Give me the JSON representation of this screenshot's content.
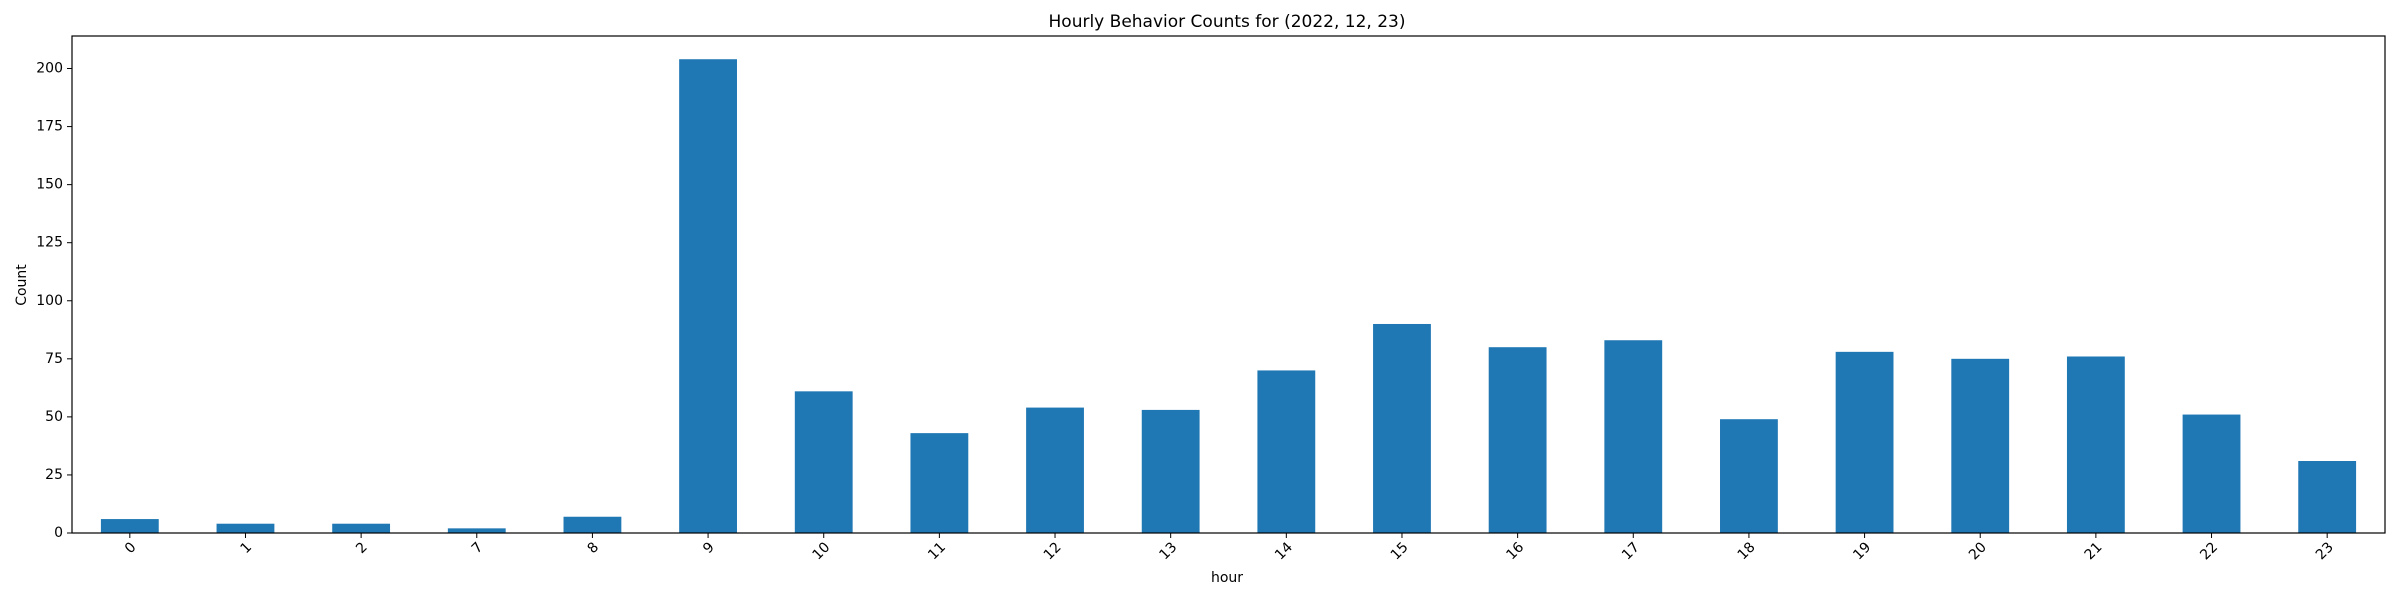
{
  "chart_data": {
    "type": "bar",
    "title": "Hourly Behavior Counts for (2022, 12, 23)",
    "xlabel": "hour",
    "ylabel": "Count",
    "categories": [
      "0",
      "1",
      "2",
      "7",
      "8",
      "9",
      "10",
      "11",
      "12",
      "13",
      "14",
      "15",
      "16",
      "17",
      "18",
      "19",
      "20",
      "21",
      "22",
      "23"
    ],
    "values": [
      6,
      4,
      4,
      2,
      7,
      204,
      61,
      43,
      54,
      53,
      70,
      90,
      80,
      83,
      49,
      78,
      75,
      76,
      51,
      31
    ],
    "ylim": [
      0,
      214
    ],
    "yticks": [
      0,
      25,
      50,
      75,
      100,
      125,
      150,
      175,
      200
    ],
    "grid": false,
    "legend": "none",
    "bar_color": "#1f77b4"
  }
}
